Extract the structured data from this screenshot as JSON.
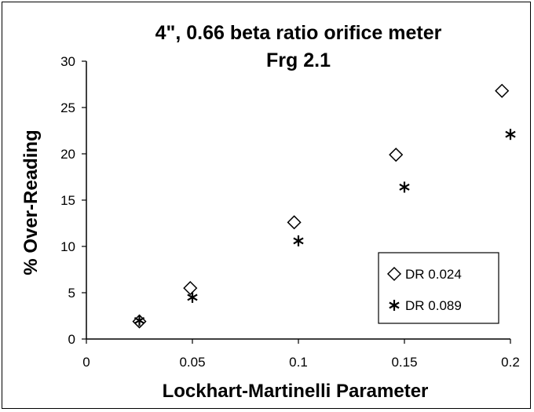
{
  "chart_data": {
    "type": "scatter",
    "title": "4\", 0.66 beta ratio orifice meter",
    "subtitle": "Frg 2.1",
    "xlabel": "Lockhart-Martinelli Parameter",
    "ylabel": "% Over-Reading",
    "xlim": [
      0,
      0.2
    ],
    "ylim": [
      0,
      30
    ],
    "xticks": [
      "0",
      "0.05",
      "0.1",
      "0.15",
      "0.2"
    ],
    "yticks": [
      "0",
      "5",
      "10",
      "15",
      "20",
      "25",
      "30"
    ],
    "grid": false,
    "legend_position": "bottom-right",
    "series": [
      {
        "name": "DR 0.024",
        "marker": "diamond",
        "points": [
          {
            "x": 0.025,
            "y": 1.9
          },
          {
            "x": 0.049,
            "y": 5.5
          },
          {
            "x": 0.098,
            "y": 12.6
          },
          {
            "x": 0.146,
            "y": 19.9
          },
          {
            "x": 0.196,
            "y": 26.8
          }
        ]
      },
      {
        "name": "DR 0.089",
        "marker": "asterisk",
        "points": [
          {
            "x": 0.025,
            "y": 2.0
          },
          {
            "x": 0.05,
            "y": 4.5
          },
          {
            "x": 0.1,
            "y": 10.6
          },
          {
            "x": 0.15,
            "y": 16.4
          },
          {
            "x": 0.2,
            "y": 22.1
          }
        ]
      }
    ]
  }
}
